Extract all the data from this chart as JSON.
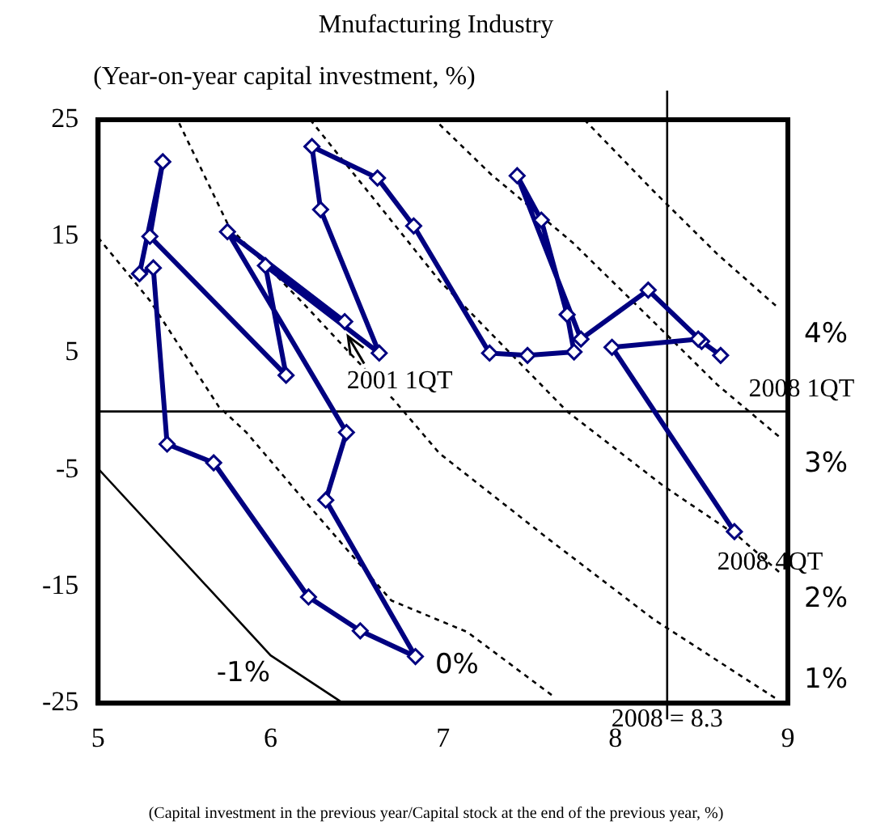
{
  "chart_data": {
    "type": "line",
    "title": "Mnufacturing Industry",
    "ylabel": "(Year-on-year capital investment, %)",
    "xlabel": "(Capital investment in the previous year/Capital stock at the end of the previous year, %)",
    "xlim": [
      5,
      9
    ],
    "xticks": [
      5,
      6,
      7,
      8,
      9
    ],
    "ylim": [
      -25,
      25
    ],
    "yticks": [
      -25,
      -15,
      -5,
      5,
      15,
      25
    ],
    "grid": false,
    "legend": false,
    "series": [
      {
        "color": "#000080",
        "marker": "diamond",
        "line_style": "solid",
        "x": [
          6.43,
          5.75,
          6.44,
          6.32,
          6.84,
          6.52,
          6.22,
          5.67,
          5.4,
          5.32,
          5.24,
          5.375,
          5.3,
          6.09,
          5.97,
          6.63,
          6.29,
          6.24,
          6.62,
          6.83,
          7.27,
          7.49,
          7.76,
          7.72,
          7.57,
          7.43,
          7.8,
          8.19,
          8.5,
          8.61,
          8.48,
          7.98,
          8.69
        ],
        "values": [
          7.7,
          15.4,
          -1.8,
          -7.6,
          -21.0,
          -18.8,
          -15.9,
          -4.4,
          -2.8,
          12.3,
          11.8,
          21.4,
          15.0,
          3.1,
          12.5,
          5.0,
          17.3,
          22.7,
          20.0,
          15.9,
          5.0,
          4.8,
          5.1,
          8.3,
          16.4,
          20.2,
          6.2,
          10.4,
          6.0,
          4.8,
          6.2,
          5.5,
          -10.3
        ]
      },
      {
        "name": "-1%",
        "color": "#000000",
        "marker": "none",
        "line_style": "solid",
        "x": [
          5.0,
          6.0,
          6.42
        ],
        "values": [
          -4.9,
          -20.9,
          -25
        ]
      },
      {
        "name": "0%",
        "color": "#000000",
        "marker": "none",
        "line_style": "dotted",
        "x": [
          5.0,
          5.3,
          5.7,
          5.86,
          6.2,
          6.7,
          7.14,
          7.63
        ],
        "values": [
          14.9,
          9.5,
          0.4,
          -1.8,
          -7.7,
          -16.2,
          -18.9,
          -24.3
        ]
      },
      {
        "name": "1%",
        "color": "#000000",
        "marker": "none",
        "line_style": "dotted",
        "x": [
          5.47,
          5.76,
          6.2,
          6.72,
          6.98,
          7.6,
          8.22,
          8.93
        ],
        "values": [
          24.7,
          15.8,
          9.1,
          0.9,
          -3.6,
          -10.8,
          -17.8,
          -24.6
        ]
      },
      {
        "name": "2%",
        "color": "#000000",
        "marker": "none",
        "line_style": "dotted",
        "x": [
          6.23,
          6.54,
          6.98,
          7.72,
          8.28,
          8.72,
          8.96
        ],
        "values": [
          25,
          19.3,
          11.2,
          0,
          -6.4,
          -10.8,
          -13.9
        ]
      },
      {
        "name": "3%",
        "color": "#000000",
        "marker": "none",
        "line_style": "dotted",
        "x": [
          6.98,
          7.28,
          7.75,
          8.22,
          8.59,
          8.96
        ],
        "values": [
          24.6,
          20.3,
          14.5,
          7.7,
          2.3,
          -2.3
        ]
      },
      {
        "name": "4%",
        "color": "#000000",
        "marker": "none",
        "line_style": "dotted",
        "x": [
          7.82,
          8.22,
          8.59,
          8.95
        ],
        "values": [
          25,
          18.9,
          13.5,
          8.8
        ]
      }
    ],
    "ref_lines": [
      {
        "axis": "y",
        "value": 0
      },
      {
        "axis": "x",
        "value": 8.3,
        "label": "2008 = 8.3"
      }
    ],
    "annotations": [
      {
        "text": "2001 1QT",
        "x": 6.43,
        "y": 7.7
      },
      {
        "text": "2008 1QT",
        "x": 8.61,
        "y": 4.8
      },
      {
        "text": "2008 4QT",
        "x": 8.69,
        "y": -10.3
      }
    ]
  }
}
